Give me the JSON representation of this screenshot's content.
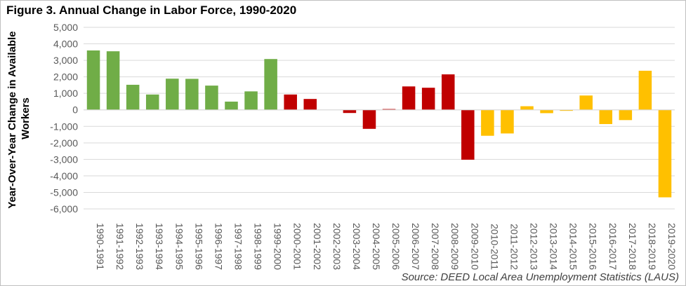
{
  "chart_data": {
    "type": "bar",
    "title": "Figure 3. Annual Change in Labor Force, 1990-2020",
    "ylabel": "Year-Over-Year Change in Available Workers",
    "ylabel_lines": [
      "Year-Over-Year Change in Available",
      "Workers"
    ],
    "xlabel": "",
    "source": "Source: DEED Local Area Unemployment Statistics (LAUS)",
    "ylim": [
      -6000,
      5000
    ],
    "yticks": [
      5000,
      4000,
      3000,
      2000,
      1000,
      0,
      -1000,
      -2000,
      -3000,
      -4000,
      -5000,
      -6000
    ],
    "ytick_labels": [
      "5,000",
      "4,000",
      "3,000",
      "2,000",
      "1,000",
      "0",
      "-1,000",
      "-2,000",
      "-3,000",
      "-4,000",
      "-5,000",
      "-6,000"
    ],
    "grid": true,
    "legend": "none",
    "colors": {
      "green": "#70ad47",
      "red": "#c00000",
      "gold": "#ffc000"
    },
    "categories": [
      "1990-1991",
      "1991-1992",
      "1992-1993",
      "1993-1994",
      "1994-1995",
      "1995-1996",
      "1996-1997",
      "1997-1998",
      "1998-1999",
      "1999-2000",
      "2000-2001",
      "2001-2002",
      "2002-2003",
      "2003-2004",
      "2004-2005",
      "2005-2006",
      "2006-2007",
      "2007-2008",
      "2008-2009",
      "2009-2010",
      "2010-2011",
      "2011-2012",
      "2012-2013",
      "2013-2014",
      "2014-2015",
      "2015-2016",
      "2016-2017",
      "2017-2018",
      "2018-2019",
      "2019-2020"
    ],
    "values": [
      3600,
      3550,
      1520,
      930,
      1890,
      1880,
      1470,
      500,
      1120,
      3080,
      930,
      660,
      0,
      -190,
      -1150,
      50,
      1420,
      1340,
      2150,
      -3020,
      -1570,
      -1430,
      220,
      -200,
      -60,
      870,
      -860,
      -620,
      2370,
      -5300
    ],
    "bar_colors": [
      "green",
      "green",
      "green",
      "green",
      "green",
      "green",
      "green",
      "green",
      "green",
      "green",
      "red",
      "red",
      "red",
      "red",
      "red",
      "red",
      "red",
      "red",
      "red",
      "red",
      "gold",
      "gold",
      "gold",
      "gold",
      "gold",
      "gold",
      "gold",
      "gold",
      "gold",
      "gold"
    ]
  }
}
